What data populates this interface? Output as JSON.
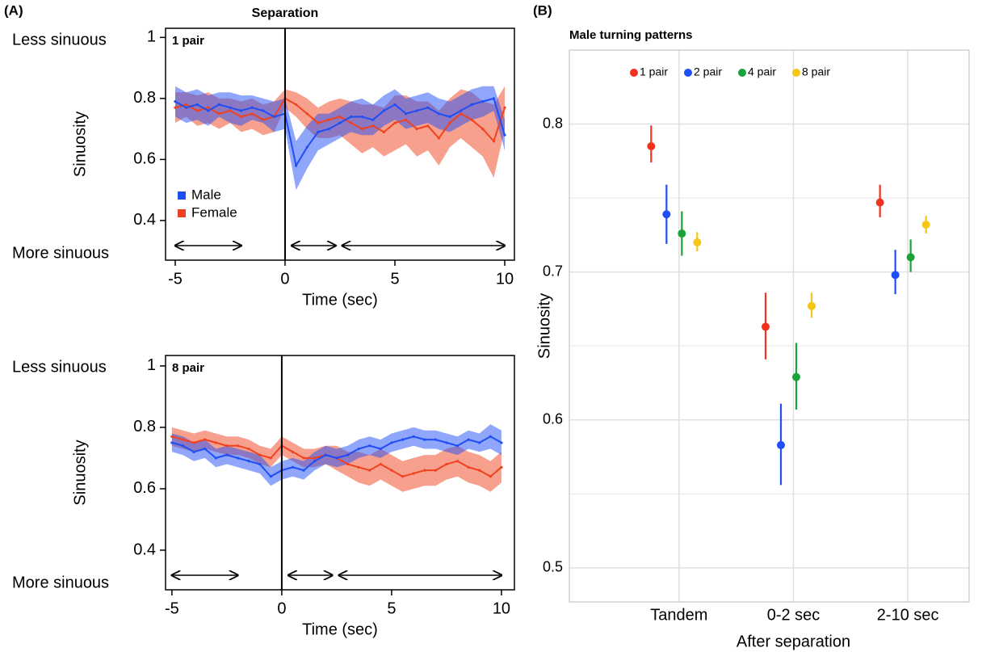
{
  "chart_data": [
    {
      "type": "line",
      "panel_label": "(A)",
      "annotation": "Separation",
      "title": "1 pair",
      "top_label": "Less sinuous",
      "bottom_label": "More sinuous",
      "x_label": "Time (sec)",
      "y_label": "Sinuosity",
      "xlim": [
        -5.44,
        10.44
      ],
      "ylim": [
        0.27,
        1.03
      ],
      "xticks": [
        -5,
        0,
        5,
        10
      ],
      "yticks": [
        0.4,
        0.6,
        0.8,
        1
      ],
      "vline": 0,
      "periods": [
        [
          -5,
          -2
        ],
        [
          0.3,
          2.3
        ],
        [
          2.6,
          10
        ]
      ],
      "legend": "lower left",
      "x": [
        -5,
        -4.5,
        -4,
        -3.5,
        -3,
        -2.5,
        -2,
        -1.5,
        -1,
        -0.5,
        0,
        0.5,
        1,
        1.5,
        2,
        2.5,
        3,
        3.5,
        4,
        4.5,
        5,
        5.5,
        6,
        6.5,
        7,
        7.5,
        8,
        8.5,
        9,
        9.5,
        10
      ],
      "series": [
        {
          "name": "Female",
          "color": "#f0421e",
          "values": [
            0.77,
            0.78,
            0.76,
            0.77,
            0.75,
            0.76,
            0.74,
            0.75,
            0.73,
            0.74,
            0.8,
            0.78,
            0.75,
            0.72,
            0.73,
            0.74,
            0.72,
            0.7,
            0.71,
            0.69,
            0.72,
            0.73,
            0.7,
            0.71,
            0.67,
            0.72,
            0.75,
            0.73,
            0.7,
            0.66,
            0.77
          ],
          "error": [
            0.05,
            0.04,
            0.05,
            0.05,
            0.05,
            0.04,
            0.05,
            0.05,
            0.05,
            0.05,
            0.03,
            0.04,
            0.05,
            0.05,
            0.06,
            0.06,
            0.07,
            0.08,
            0.07,
            0.08,
            0.09,
            0.08,
            0.09,
            0.08,
            0.09,
            0.08,
            0.08,
            0.09,
            0.09,
            0.12,
            0.07
          ]
        },
        {
          "name": "Male",
          "color": "#1f4ef5",
          "values": [
            0.79,
            0.77,
            0.78,
            0.76,
            0.78,
            0.77,
            0.76,
            0.77,
            0.76,
            0.74,
            0.75,
            0.58,
            0.64,
            0.69,
            0.7,
            0.72,
            0.74,
            0.74,
            0.73,
            0.76,
            0.78,
            0.75,
            0.76,
            0.77,
            0.75,
            0.74,
            0.76,
            0.78,
            0.79,
            0.8,
            0.68
          ],
          "error": [
            0.05,
            0.05,
            0.05,
            0.05,
            0.04,
            0.05,
            0.05,
            0.04,
            0.04,
            0.05,
            0.05,
            0.08,
            0.07,
            0.06,
            0.05,
            0.05,
            0.05,
            0.06,
            0.05,
            0.05,
            0.05,
            0.05,
            0.05,
            0.05,
            0.05,
            0.05,
            0.05,
            0.05,
            0.05,
            0.04,
            0.05
          ]
        }
      ]
    },
    {
      "type": "line",
      "title": "8 pair",
      "top_label": "Less sinuous",
      "bottom_label": "More sinuous",
      "x_label": "Time (sec)",
      "y_label": "Sinuosity",
      "xlim": [
        -5.29,
        10.59
      ],
      "ylim": [
        0.271,
        1.034
      ],
      "xticks": [
        -5,
        0,
        5,
        10
      ],
      "yticks": [
        0.4,
        0.6,
        0.8,
        1
      ],
      "vline": 0,
      "periods": [
        [
          -5,
          -2
        ],
        [
          0.3,
          2.3
        ],
        [
          2.6,
          10
        ]
      ],
      "x": [
        -5,
        -4.5,
        -4,
        -3.5,
        -3,
        -2.5,
        -2,
        -1.5,
        -1,
        -0.5,
        0,
        0.5,
        1,
        1.5,
        2,
        2.5,
        3,
        3.5,
        4,
        4.5,
        5,
        5.5,
        6,
        6.5,
        7,
        7.5,
        8,
        8.5,
        9,
        9.5,
        10
      ],
      "series": [
        {
          "color": "#f0421e",
          "values": [
            0.77,
            0.76,
            0.75,
            0.76,
            0.75,
            0.74,
            0.74,
            0.73,
            0.71,
            0.7,
            0.74,
            0.72,
            0.7,
            0.7,
            0.71,
            0.7,
            0.68,
            0.67,
            0.66,
            0.68,
            0.66,
            0.64,
            0.65,
            0.66,
            0.66,
            0.68,
            0.69,
            0.67,
            0.66,
            0.64,
            0.67
          ],
          "error": [
            0.03,
            0.03,
            0.03,
            0.03,
            0.03,
            0.03,
            0.03,
            0.03,
            0.03,
            0.03,
            0.03,
            0.03,
            0.03,
            0.03,
            0.03,
            0.04,
            0.04,
            0.05,
            0.05,
            0.05,
            0.05,
            0.05,
            0.05,
            0.05,
            0.05,
            0.05,
            0.05,
            0.05,
            0.05,
            0.05,
            0.05
          ]
        },
        {
          "color": "#1f4ef5",
          "values": [
            0.75,
            0.74,
            0.72,
            0.73,
            0.7,
            0.71,
            0.7,
            0.69,
            0.68,
            0.64,
            0.66,
            0.67,
            0.66,
            0.69,
            0.71,
            0.7,
            0.71,
            0.73,
            0.74,
            0.73,
            0.75,
            0.76,
            0.77,
            0.76,
            0.76,
            0.75,
            0.74,
            0.76,
            0.75,
            0.77,
            0.75
          ],
          "error": [
            0.03,
            0.03,
            0.03,
            0.03,
            0.03,
            0.03,
            0.03,
            0.03,
            0.03,
            0.03,
            0.03,
            0.03,
            0.03,
            0.03,
            0.03,
            0.03,
            0.03,
            0.03,
            0.03,
            0.03,
            0.03,
            0.03,
            0.03,
            0.03,
            0.03,
            0.03,
            0.03,
            0.03,
            0.03,
            0.04,
            0.04
          ]
        }
      ]
    },
    {
      "type": "scatter",
      "panel_label": "(B)",
      "title": "Male turning patterns",
      "x_label": "After separation",
      "y_label": "Sinuosity",
      "categories": [
        "Tandem",
        "0-2 sec",
        "2-10 sec"
      ],
      "ylim": [
        0.477,
        0.85
      ],
      "yticks": [
        0.5,
        0.6,
        0.7,
        0.8
      ],
      "minor_yticks": [
        0.55,
        0.65,
        0.75
      ],
      "grid": true,
      "legend": "upper left",
      "series": [
        {
          "name": "1 pair",
          "color": "#f0321e",
          "values": [
            0.785,
            0.663,
            0.747
          ],
          "lower": [
            0.774,
            0.641,
            0.737
          ],
          "upper": [
            0.799,
            0.686,
            0.759
          ]
        },
        {
          "name": "2 pair",
          "color": "#1f4ef5",
          "values": [
            0.739,
            0.583,
            0.698
          ],
          "lower": [
            0.719,
            0.556,
            0.685
          ],
          "upper": [
            0.759,
            0.611,
            0.715
          ]
        },
        {
          "name": "4 pair",
          "color": "#1aa33a",
          "values": [
            0.726,
            0.629,
            0.71
          ],
          "lower": [
            0.711,
            0.607,
            0.7
          ],
          "upper": [
            0.741,
            0.652,
            0.722
          ]
        },
        {
          "name": "8 pair",
          "color": "#f5c518",
          "values": [
            0.72,
            0.677,
            0.732
          ],
          "lower": [
            0.714,
            0.669,
            0.726
          ],
          "upper": [
            0.727,
            0.686,
            0.738
          ]
        }
      ]
    }
  ]
}
